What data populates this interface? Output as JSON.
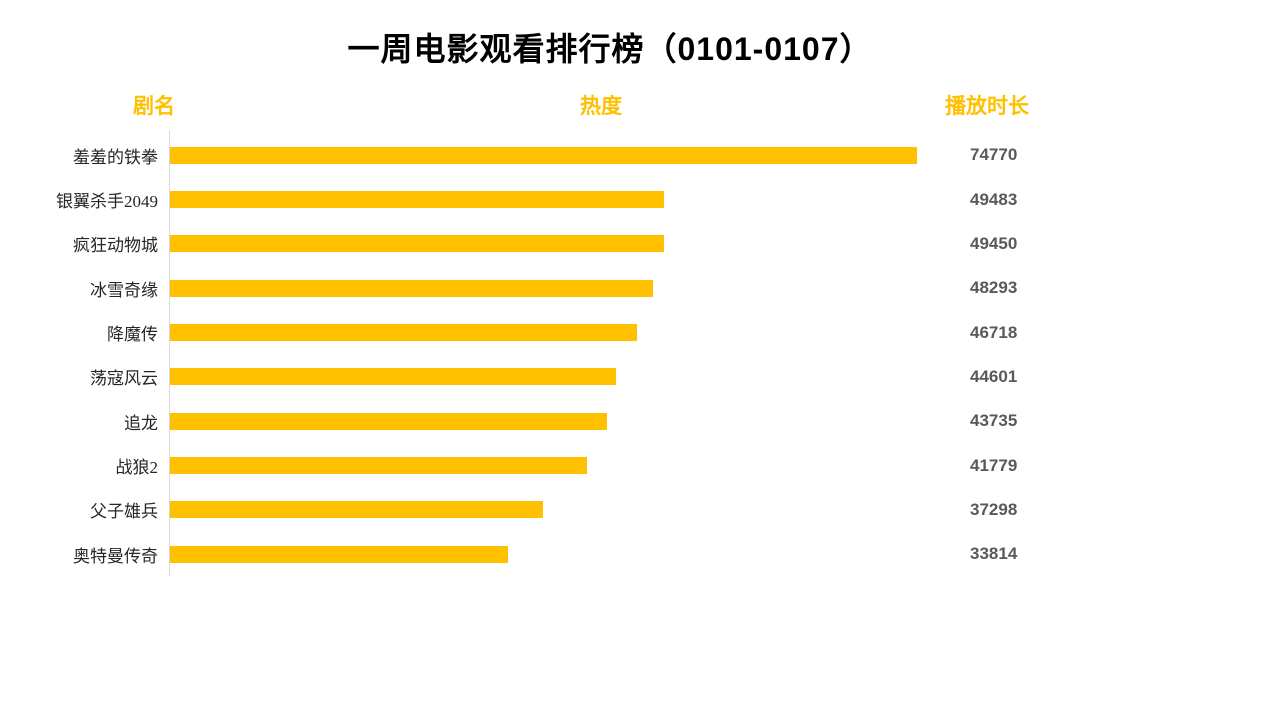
{
  "page": {
    "title": "一周电影观看排行榜（0101-0107）"
  },
  "columns": {
    "name": "剧名",
    "heat": "热度",
    "duration": "播放时长"
  },
  "rows": [
    {
      "name": "羞羞的铁拳",
      "value": 74770,
      "value_label": "74770"
    },
    {
      "name": "银翼杀手2049",
      "value": 49483,
      "value_label": "49483"
    },
    {
      "name": "疯狂动物城",
      "value": 49450,
      "value_label": "49450"
    },
    {
      "name": "冰雪奇缘",
      "value": 48293,
      "value_label": "48293"
    },
    {
      "name": "降魔传",
      "value": 46718,
      "value_label": "46718"
    },
    {
      "name": "荡寇风云",
      "value": 44601,
      "value_label": "44601"
    },
    {
      "name": "追龙",
      "value": 43735,
      "value_label": "43735"
    },
    {
      "name": "战狼2",
      "value": 41779,
      "value_label": "41779"
    },
    {
      "name": "父子雄兵",
      "value": 37298,
      "value_label": "37298"
    },
    {
      "name": "奥特曼传奇",
      "value": 33814,
      "value_label": "33814"
    }
  ],
  "colors": {
    "bar": "#FFC000",
    "header_text": "#FFC000",
    "title_text": "#000000",
    "value_text": "#595959",
    "label_text": "#262626",
    "axis_line": "#D9D9D9",
    "background": "#FFFFFF"
  },
  "chart_data": {
    "type": "bar",
    "orientation": "horizontal",
    "title": "一周电影观看排行榜（0101-0107）",
    "categories": [
      "羞羞的铁拳",
      "银翼杀手2049",
      "疯狂动物城",
      "冰雪奇缘",
      "降魔传",
      "荡寇风云",
      "追龙",
      "战狼2",
      "父子雄兵",
      "奥特曼传奇"
    ],
    "values": [
      74770,
      49483,
      49450,
      48293,
      46718,
      44601,
      43735,
      41779,
      37298,
      33814
    ],
    "category_column_header": "剧名",
    "bar_column_header": "热度",
    "value_column_header": "播放时长",
    "xlim": [
      0,
      74770
    ],
    "grid": false,
    "legend": "none",
    "value_labels_shown": true,
    "bar_color": "#FFC000"
  }
}
